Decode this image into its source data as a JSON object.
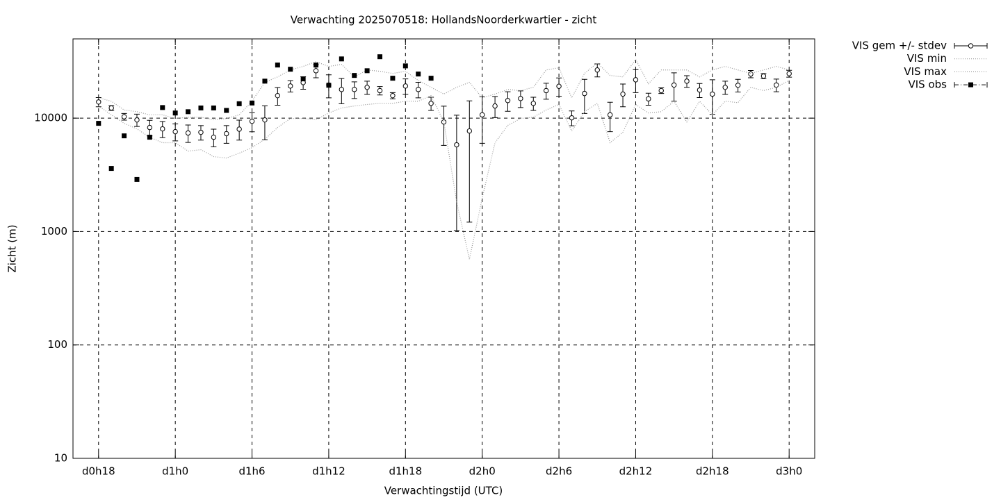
{
  "chart_data": {
    "type": "line",
    "title": "Verwachting 2025070518: HollandsNoorderkwartier - zicht",
    "xlabel": "Verwachtingstijd (UTC)",
    "ylabel": "Zicht (m)",
    "log_y": true,
    "grid": true,
    "legend": "outside-right",
    "xlim": [
      16,
      74
    ],
    "xticks": [
      {
        "value": 18,
        "label": "d0h18"
      },
      {
        "value": 24,
        "label": "d1h0"
      },
      {
        "value": 30,
        "label": "d1h6"
      },
      {
        "value": 36,
        "label": "d1h12"
      },
      {
        "value": 42,
        "label": "d1h18"
      },
      {
        "value": 48,
        "label": "d2h0"
      },
      {
        "value": 54,
        "label": "d2h6"
      },
      {
        "value": 60,
        "label": "d2h12"
      },
      {
        "value": 66,
        "label": "d2h18"
      },
      {
        "value": 72,
        "label": "d3h0"
      }
    ],
    "ylim": [
      10,
      50000
    ],
    "yticks": [
      10,
      100,
      1000,
      10000
    ],
    "series": [
      {
        "name": "VIS gem +/- stdev",
        "style": "errorbar",
        "color": "#000000",
        "x": [
          18,
          19,
          20,
          21,
          22,
          23,
          24,
          25,
          26,
          27,
          28,
          29,
          30,
          31,
          32,
          33,
          34,
          35,
          36,
          37,
          38,
          39,
          40,
          41,
          42,
          43,
          44,
          45,
          46,
          47,
          48,
          49,
          50,
          51,
          52,
          53,
          54,
          55,
          56,
          57,
          58,
          59,
          60,
          61,
          62,
          63,
          64,
          65,
          66,
          67,
          68,
          69,
          70,
          71,
          72
        ],
        "values": [
          13900,
          12300,
          10300,
          9650,
          8270,
          8040,
          7600,
          7400,
          7500,
          6790,
          7300,
          8000,
          9380,
          9650,
          15800,
          19200,
          20600,
          26200,
          19600,
          17900,
          17900,
          18700,
          17500,
          15800,
          19200,
          17900,
          13500,
          9250,
          5820,
          7710,
          10700,
          12800,
          14300,
          14900,
          13500,
          17500,
          19100,
          10070,
          16500,
          26600,
          10700,
          16300,
          21800,
          14800,
          17500,
          19600,
          21200,
          17700,
          16300,
          18700,
          19500,
          24500,
          23500,
          19600,
          24700
        ],
        "stdev": [
          1300,
          600,
          700,
          1200,
          1300,
          1300,
          1300,
          1300,
          1100,
          1200,
          1300,
          1600,
          1800,
          3200,
          2800,
          2200,
          2600,
          3500,
          4500,
          4500,
          3000,
          2500,
          1500,
          1000,
          3000,
          2800,
          1800,
          3500,
          4800,
          6500,
          4700,
          2700,
          2800,
          2500,
          1800,
          2800,
          3500,
          1500,
          5500,
          3500,
          3100,
          3700,
          5000,
          1800,
          1000,
          5500,
          2500,
          2500,
          5500,
          2500,
          2500,
          1800,
          1200,
          2500,
          1700
        ]
      },
      {
        "name": "VIS min",
        "style": "dotted",
        "color": "#999999",
        "x": [
          18,
          19,
          20,
          21,
          22,
          23,
          24,
          25,
          26,
          27,
          28,
          29,
          30,
          31,
          32,
          33,
          34,
          35,
          36,
          37,
          38,
          39,
          40,
          41,
          42,
          43,
          44,
          45,
          46,
          47,
          48,
          49,
          50,
          51,
          52,
          53,
          54,
          55,
          56,
          57,
          58,
          59,
          60,
          61,
          62,
          63,
          64,
          65,
          66,
          67,
          68,
          69,
          70,
          71,
          72
        ],
        "values": [
          12800,
          10700,
          9000,
          8040,
          6790,
          6070,
          6070,
          5120,
          5270,
          4580,
          4450,
          4910,
          5500,
          6510,
          8270,
          9930,
          9930,
          9660,
          11100,
          12300,
          12800,
          13200,
          13500,
          13500,
          14100,
          14100,
          15800,
          9250,
          1830,
          569,
          1970,
          6070,
          8630,
          9930,
          10200,
          11800,
          13200,
          7710,
          11400,
          13500,
          6070,
          7500,
          13200,
          11100,
          11400,
          14100,
          9250,
          14100,
          10700,
          14100,
          13700,
          18700,
          17500,
          18700,
          21500
        ]
      },
      {
        "name": "VIS max",
        "style": "dotted",
        "color": "#999999",
        "x": [
          18,
          19,
          20,
          21,
          22,
          23,
          24,
          25,
          26,
          27,
          28,
          29,
          30,
          31,
          32,
          33,
          34,
          35,
          36,
          37,
          38,
          39,
          40,
          41,
          42,
          43,
          44,
          45,
          46,
          47,
          48,
          49,
          50,
          51,
          52,
          53,
          54,
          55,
          56,
          57,
          58,
          59,
          60,
          61,
          62,
          63,
          64,
          65,
          66,
          67,
          68,
          69,
          70,
          71,
          72
        ],
        "values": [
          15100,
          14100,
          11800,
          11400,
          10700,
          10700,
          9930,
          10200,
          10200,
          9660,
          9930,
          10700,
          14100,
          20700,
          23100,
          26600,
          28600,
          31500,
          28600,
          29800,
          23100,
          26600,
          25900,
          24800,
          25900,
          21500,
          18700,
          16300,
          18700,
          20700,
          15100,
          16300,
          17900,
          17500,
          18700,
          26600,
          27800,
          15100,
          24800,
          30700,
          23800,
          23100,
          32900,
          20100,
          26600,
          26600,
          26600,
          23100,
          26600,
          28600,
          26600,
          24800,
          26600,
          28600,
          26600
        ]
      },
      {
        "name": "VIS obs",
        "style": "points",
        "color": "#000000",
        "x": [
          18,
          19,
          20,
          21,
          22,
          23,
          24,
          25,
          26,
          27,
          28,
          29,
          30,
          31,
          32,
          33,
          34,
          35,
          36,
          37,
          38,
          39,
          40,
          41,
          42,
          43,
          44
        ],
        "values": [
          9000,
          3600,
          6980,
          2880,
          6790,
          12400,
          11100,
          11400,
          12300,
          12300,
          11700,
          13400,
          13600,
          21200,
          29400,
          27000,
          22200,
          29400,
          19500,
          33300,
          23800,
          26200,
          34800,
          22500,
          28900,
          24500,
          22500
        ]
      }
    ]
  }
}
